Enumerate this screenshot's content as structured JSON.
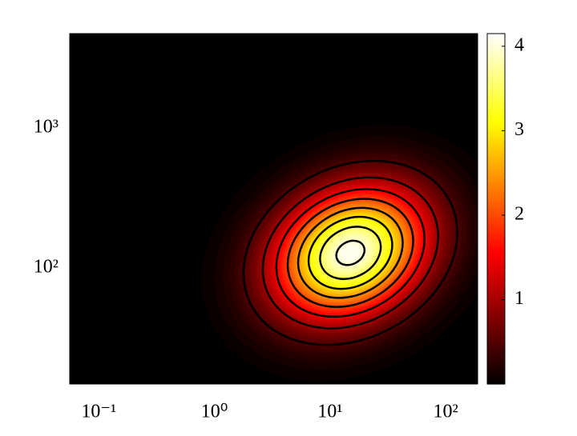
{
  "chart_data": {
    "type": "contour",
    "xscale": "log",
    "yscale": "log",
    "xlim": [
      0.056,
      189
    ],
    "ylim": [
      14.8,
      4720
    ],
    "xticks": [
      {
        "value": 0.1,
        "label": "10⁻¹"
      },
      {
        "value": 1,
        "label": "10⁰"
      },
      {
        "value": 10,
        "label": "10¹"
      },
      {
        "value": 100,
        "label": "10²"
      }
    ],
    "yticks": [
      {
        "value": 100,
        "label": "10²"
      },
      {
        "value": 1000,
        "label": "10³"
      }
    ],
    "peak": {
      "x": 15,
      "y": 128,
      "value": 4.15
    },
    "levels": [
      0.5,
      1,
      1.5,
      2,
      2.5,
      3,
      3.5,
      4
    ],
    "colormap": "hot",
    "line_color": "#000000",
    "clim": [
      0,
      4.15
    ],
    "cticks": [
      1,
      2,
      3,
      4
    ]
  }
}
